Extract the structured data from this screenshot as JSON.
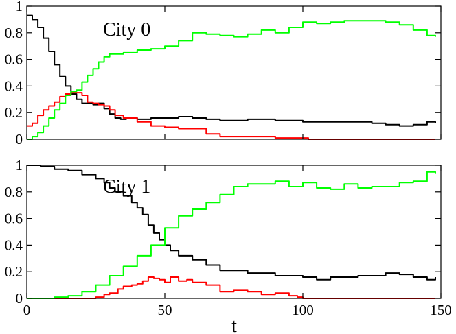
{
  "chart_data": [
    {
      "type": "line",
      "title": "City 0",
      "xlim": [
        0,
        150
      ],
      "ylim": [
        0,
        1
      ],
      "x_ticks": [
        "0",
        "50",
        "100",
        "150"
      ],
      "y_ticks": [
        "0",
        "0.2",
        "0.4",
        "0.6",
        "0.8",
        "1"
      ],
      "grid": false,
      "series": [
        {
          "color": "#000000",
          "x": [
            0,
            2,
            4,
            6,
            8,
            10,
            12,
            14,
            16,
            18,
            20,
            22,
            24,
            26,
            28,
            30,
            32,
            34,
            36,
            40,
            45,
            50,
            55,
            60,
            65,
            70,
            80,
            90,
            100,
            110,
            120,
            125,
            130,
            135,
            140,
            145,
            148
          ],
          "y": [
            0.93,
            0.9,
            0.84,
            0.76,
            0.66,
            0.56,
            0.47,
            0.4,
            0.34,
            0.3,
            0.27,
            0.27,
            0.26,
            0.27,
            0.23,
            0.19,
            0.16,
            0.15,
            0.16,
            0.15,
            0.16,
            0.16,
            0.17,
            0.16,
            0.15,
            0.14,
            0.15,
            0.14,
            0.13,
            0.13,
            0.13,
            0.12,
            0.11,
            0.1,
            0.11,
            0.13,
            0.12
          ]
        },
        {
          "color": "#ff0000",
          "x": [
            0,
            2,
            4,
            6,
            8,
            10,
            12,
            14,
            16,
            18,
            20,
            22,
            24,
            26,
            28,
            30,
            32,
            35,
            40,
            45,
            50,
            55,
            60,
            65,
            70,
            80,
            90,
            100,
            102,
            110,
            120,
            130,
            140,
            148
          ],
          "y": [
            0.1,
            0.12,
            0.18,
            0.22,
            0.25,
            0.28,
            0.32,
            0.34,
            0.35,
            0.35,
            0.33,
            0.28,
            0.27,
            0.26,
            0.25,
            0.22,
            0.18,
            0.16,
            0.13,
            0.1,
            0.09,
            0.08,
            0.08,
            0.04,
            0.02,
            0.02,
            0.01,
            0.01,
            0.0,
            0.0,
            0.0,
            0.0,
            0.0,
            0.0
          ]
        },
        {
          "color": "#00ff00",
          "x": [
            0,
            2,
            4,
            6,
            8,
            10,
            12,
            14,
            16,
            18,
            20,
            22,
            24,
            26,
            28,
            30,
            35,
            40,
            45,
            50,
            55,
            60,
            65,
            70,
            75,
            80,
            85,
            90,
            95,
            100,
            105,
            110,
            115,
            120,
            125,
            130,
            135,
            140,
            145,
            148
          ],
          "y": [
            0.0,
            0.02,
            0.05,
            0.1,
            0.16,
            0.22,
            0.27,
            0.33,
            0.36,
            0.37,
            0.43,
            0.48,
            0.53,
            0.58,
            0.62,
            0.64,
            0.65,
            0.67,
            0.68,
            0.7,
            0.74,
            0.8,
            0.79,
            0.78,
            0.77,
            0.79,
            0.82,
            0.8,
            0.84,
            0.88,
            0.87,
            0.88,
            0.89,
            0.89,
            0.89,
            0.88,
            0.86,
            0.82,
            0.78,
            0.77
          ]
        }
      ]
    },
    {
      "type": "line",
      "title": "City 1",
      "xlabel": "t",
      "xlim": [
        0,
        150
      ],
      "ylim": [
        0,
        1
      ],
      "x_ticks": [
        "0",
        "50",
        "100",
        "150"
      ],
      "y_ticks": [
        "0",
        "0.2",
        "0.4",
        "0.6",
        "0.8",
        "1"
      ],
      "grid": false,
      "series": [
        {
          "color": "#000000",
          "x": [
            0,
            5,
            10,
            15,
            20,
            25,
            28,
            30,
            32,
            35,
            38,
            40,
            42,
            44,
            46,
            48,
            50,
            52,
            55,
            60,
            65,
            70,
            80,
            90,
            100,
            105,
            110,
            120,
            130,
            135,
            140,
            145,
            148
          ],
          "y": [
            1.0,
            0.99,
            0.97,
            0.96,
            0.93,
            0.9,
            0.87,
            0.83,
            0.8,
            0.77,
            0.72,
            0.68,
            0.63,
            0.55,
            0.49,
            0.44,
            0.4,
            0.36,
            0.32,
            0.29,
            0.25,
            0.21,
            0.19,
            0.17,
            0.16,
            0.14,
            0.16,
            0.17,
            0.19,
            0.18,
            0.16,
            0.14,
            0.16
          ]
        },
        {
          "color": "#ff0000",
          "x": [
            0,
            10,
            20,
            25,
            28,
            30,
            33,
            35,
            38,
            40,
            42,
            44,
            46,
            48,
            50,
            52,
            55,
            58,
            60,
            65,
            70,
            75,
            80,
            85,
            90,
            95,
            98,
            100,
            120,
            148
          ],
          "y": [
            0.0,
            0.0,
            0.0,
            0.01,
            0.03,
            0.04,
            0.07,
            0.09,
            0.1,
            0.11,
            0.13,
            0.16,
            0.15,
            0.14,
            0.12,
            0.16,
            0.13,
            0.14,
            0.12,
            0.1,
            0.05,
            0.06,
            0.05,
            0.03,
            0.04,
            0.02,
            0.01,
            0.0,
            0.0,
            0.0
          ]
        },
        {
          "color": "#00ff00",
          "x": [
            0,
            6,
            10,
            15,
            20,
            25,
            30,
            35,
            40,
            45,
            50,
            55,
            60,
            65,
            70,
            75,
            80,
            85,
            90,
            95,
            100,
            105,
            110,
            115,
            120,
            125,
            130,
            135,
            140,
            145,
            148
          ],
          "y": [
            0.0,
            0.0,
            0.01,
            0.02,
            0.05,
            0.1,
            0.17,
            0.24,
            0.32,
            0.4,
            0.53,
            0.62,
            0.67,
            0.72,
            0.78,
            0.84,
            0.86,
            0.86,
            0.88,
            0.84,
            0.87,
            0.83,
            0.82,
            0.86,
            0.83,
            0.84,
            0.84,
            0.87,
            0.88,
            0.95,
            0.94
          ]
        }
      ]
    }
  ]
}
